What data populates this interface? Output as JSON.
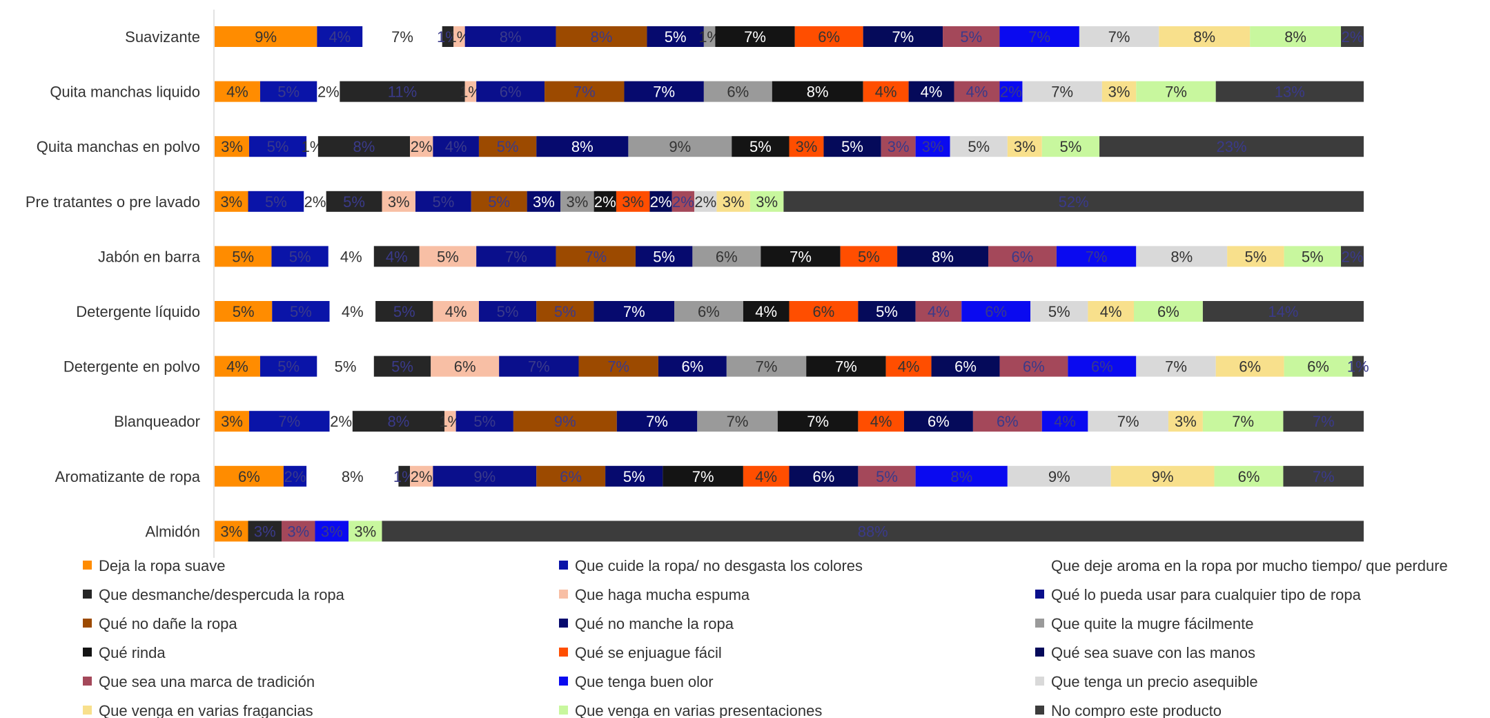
{
  "chart_data": {
    "type": "bar",
    "orientation": "horizontal",
    "stacked": true,
    "normalized": true,
    "legend_position": "bottom",
    "grid": false,
    "categories": [
      "Suavizante",
      "Quita manchas liquido",
      "Quita manchas en polvo",
      "Pre tratantes o pre lavado",
      "Jabón en barra",
      "Detergente líquido",
      "Detergente en polvo",
      "Blanqueador",
      "Aromatizante de ropa",
      "Almidón"
    ],
    "series": [
      {
        "name": "Deja la ropa suave",
        "color": "#FF8C00",
        "values": [
          9,
          4,
          3,
          3,
          5,
          5,
          4,
          3,
          6,
          3
        ]
      },
      {
        "name": "Que cuide la ropa/ no desgasta los colores",
        "color": "#0A14A8",
        "values": [
          4,
          5,
          5,
          5,
          5,
          5,
          5,
          7,
          2,
          0
        ]
      },
      {
        "name": "Que deje aroma en la ropa por mucho tiempo/ que perdure",
        "color": "#FFFFFF",
        "values": [
          7,
          2,
          1,
          2,
          4,
          4,
          5,
          2,
          8,
          0
        ]
      },
      {
        "name": "Que desmanche/despercuda la ropa",
        "color": "#262626",
        "values": [
          1,
          11,
          8,
          5,
          4,
          5,
          5,
          8,
          1,
          3
        ]
      },
      {
        "name": "Que haga mucha espuma",
        "color": "#F8BFA5",
        "values": [
          1,
          1,
          2,
          3,
          5,
          4,
          6,
          1,
          2,
          0
        ]
      },
      {
        "name": "Qué lo pueda usar para cualquier tipo de ropa",
        "color": "#0A0F8C",
        "values": [
          8,
          6,
          4,
          5,
          7,
          5,
          7,
          5,
          9,
          0
        ]
      },
      {
        "name": "Qué no dañe la ropa",
        "color": "#9C4A00",
        "values": [
          8,
          7,
          5,
          5,
          7,
          5,
          7,
          9,
          6,
          0
        ]
      },
      {
        "name": "Qué no manche la ropa",
        "color": "#060A6E",
        "values": [
          5,
          7,
          8,
          3,
          5,
          7,
          6,
          7,
          5,
          0
        ]
      },
      {
        "name": "Que quite la mugre fácilmente",
        "color": "#9A9A9A",
        "values": [
          1,
          6,
          9,
          3,
          6,
          6,
          7,
          7,
          0,
          0
        ]
      },
      {
        "name": "Qué rinda",
        "color": "#141414",
        "values": [
          7,
          8,
          5,
          2,
          7,
          4,
          7,
          7,
          7,
          0
        ]
      },
      {
        "name": "Qué se enjuague fácil",
        "color": "#FF4E00",
        "values": [
          6,
          4,
          3,
          3,
          5,
          6,
          4,
          4,
          4,
          0
        ]
      },
      {
        "name": "Qué sea suave con las manos",
        "color": "#050A5A",
        "values": [
          7,
          4,
          5,
          2,
          8,
          5,
          6,
          6,
          6,
          0
        ]
      },
      {
        "name": "Que sea una marca de tradición",
        "color": "#A4485A",
        "values": [
          5,
          4,
          3,
          2,
          6,
          4,
          6,
          6,
          5,
          3
        ]
      },
      {
        "name": "Que tenga buen olor",
        "color": "#0A0AF0",
        "values": [
          7,
          2,
          3,
          0,
          7,
          6,
          6,
          4,
          8,
          3
        ]
      },
      {
        "name": "Que tenga un precio asequible",
        "color": "#D9D9D9",
        "values": [
          7,
          7,
          5,
          2,
          8,
          5,
          7,
          7,
          9,
          0
        ]
      },
      {
        "name": "Que venga en varias fragancias",
        "color": "#F8E08C",
        "values": [
          8,
          3,
          3,
          3,
          5,
          4,
          6,
          3,
          9,
          0
        ]
      },
      {
        "name": "Que venga en varias presentaciones",
        "color": "#C8F79E",
        "values": [
          8,
          7,
          5,
          3,
          5,
          6,
          6,
          7,
          6,
          3
        ]
      },
      {
        "name": "No compro este producto",
        "color": "#3C3C3C",
        "values": [
          2,
          13,
          23,
          52,
          2,
          14,
          1,
          7,
          7,
          88
        ]
      }
    ],
    "labels": [
      [
        "9%",
        "4%",
        "7%",
        "1%",
        "1%",
        "8%",
        "8%",
        "5%",
        "1%",
        "7%",
        "6%",
        "7%",
        "5%",
        "7%",
        "7%",
        "8%",
        "8%",
        "2%"
      ],
      [
        "4%",
        "5%",
        "2%",
        "11%",
        "1%",
        "6%",
        "7%",
        "7%",
        "6%",
        "8%",
        "4%",
        "4%",
        "4%",
        "2%",
        "7%",
        "3%",
        "7%",
        "13%"
      ],
      [
        "3%",
        "5%",
        "1%",
        "8%",
        "2%",
        "4%",
        "5%",
        "8%",
        "9%",
        "5%",
        "3%",
        "5%",
        "3%",
        "3%",
        "5%",
        "3%",
        "5%",
        "23%"
      ],
      [
        "3%",
        "5%",
        "2%",
        "5%",
        "3%",
        "5%",
        "5%",
        "3%",
        "3%",
        "2%",
        "3%",
        "2%",
        "2%",
        "",
        "2%",
        "3%",
        "3%",
        "52%"
      ],
      [
        "5%",
        "5%",
        "4%",
        "4%",
        "5%",
        "7%",
        "7%",
        "5%",
        "6%",
        "7%",
        "5%",
        "8%",
        "6%",
        "7%",
        "8%",
        "5%",
        "5%",
        "2%"
      ],
      [
        "5%",
        "5%",
        "4%",
        "5%",
        "4%",
        "5%",
        "5%",
        "7%",
        "6%",
        "4%",
        "6%",
        "5%",
        "4%",
        "6%",
        "5%",
        "4%",
        "6%",
        "14%"
      ],
      [
        "4%",
        "5%",
        "5%",
        "5%",
        "6%",
        "7%",
        "7%",
        "6%",
        "7%",
        "7%",
        "4%",
        "6%",
        "6%",
        "6%",
        "7%",
        "6%",
        "6%",
        "1%"
      ],
      [
        "3%",
        "7%",
        "2%",
        "8%",
        "1%",
        "5%",
        "9%",
        "7%",
        "7%",
        "7%",
        "4%",
        "6%",
        "6%",
        "4%",
        "7%",
        "3%",
        "7%",
        "7%"
      ],
      [
        "6%",
        "2%",
        "8%",
        "1%",
        "2%",
        "9%",
        "6%",
        "5%",
        "",
        "7%",
        "4%",
        "6%",
        "5%",
        "8%",
        "9%",
        "9%",
        "6%",
        "7%"
      ],
      [
        "3%",
        "",
        "",
        "3%",
        "",
        "",
        "",
        "",
        "",
        "",
        "",
        "",
        "3%",
        "3%",
        "",
        "",
        "3%",
        "88%"
      ]
    ]
  }
}
